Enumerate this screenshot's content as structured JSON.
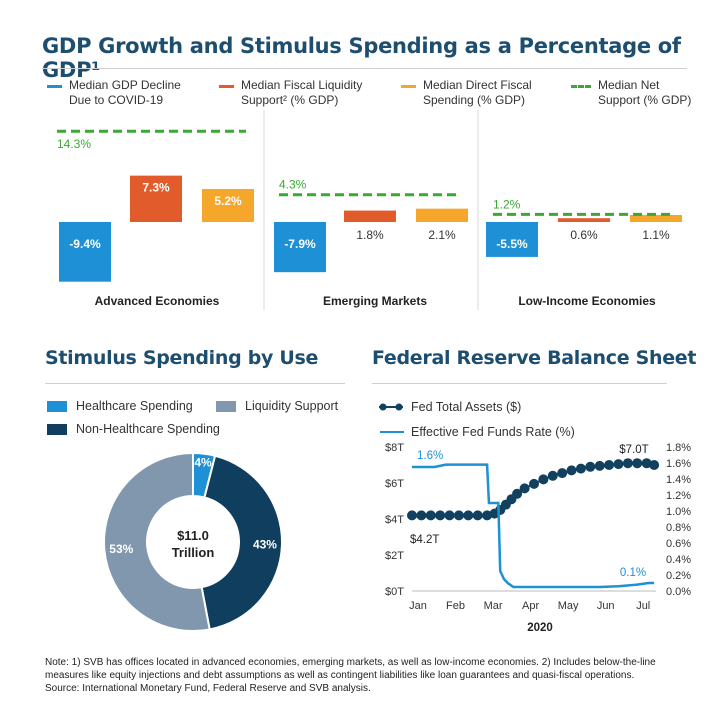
{
  "title_main": "GDP Growth and Stimulus Spending as a Percentage of GDP¹",
  "title_donut": "Stimulus Spending by Use",
  "title_fed": "Federal Reserve Balance Sheet",
  "colors": {
    "title": "#1d4e70",
    "gdp": "#1e90d6",
    "liquidity": "#e15c2a",
    "direct": "#f5a72b",
    "net": "#3aa832",
    "healthcare": "#1e90d6",
    "liquidity_use": "#8197ae",
    "nonhealth": "#0f3e5e",
    "fed_assets": "#12405f",
    "ffr": "#1e90d6"
  },
  "chart_data": [
    {
      "type": "bar",
      "title": "GDP Growth and Stimulus Spending as a Percentage of GDP¹",
      "categories": [
        "Advanced Economies",
        "Emerging Markets",
        "Low-Income Economies"
      ],
      "series": [
        {
          "name": "Median GDP Decline Due to COVID-19",
          "values": [
            -9.4,
            -7.9,
            -5.5
          ],
          "labels": [
            "-9.4%",
            "-7.9%",
            "-5.5%"
          ]
        },
        {
          "name": "Median Fiscal Liquidity Support² (% GDP)",
          "values": [
            7.3,
            1.8,
            0.6
          ],
          "labels": [
            "7.3%",
            "1.8%",
            "0.6%"
          ]
        },
        {
          "name": "Median Direct Fiscal Spending (% GDP)",
          "values": [
            5.2,
            2.1,
            1.1
          ],
          "labels": [
            "5.2%",
            "2.1%",
            "1.1%"
          ]
        },
        {
          "name": "Median Net Support (% GDP)",
          "values": [
            14.3,
            4.3,
            1.2
          ],
          "labels": [
            "14.3%",
            "4.3%",
            "1.2%"
          ],
          "style": "dashed"
        }
      ],
      "legend": [
        {
          "line1": "Median GDP Decline",
          "line2": "Due to COVID-19"
        },
        {
          "line1": "Median Fiscal Liquidity",
          "line2": "Support² (% GDP)"
        },
        {
          "line1": "Median Direct Fiscal",
          "line2": "Spending (% GDP)"
        },
        {
          "line1": "Median Net",
          "line2": "Support (% GDP)"
        }
      ]
    },
    {
      "type": "pie",
      "title": "Stimulus Spending by Use",
      "center_label": [
        "$11.0",
        "Trillion"
      ],
      "slices": [
        {
          "name": "Healthcare Spending",
          "value": 4,
          "label": "4%"
        },
        {
          "name": "Non-Healthcare Spending",
          "value": 43,
          "label": "43%"
        },
        {
          "name": "Liquidity Support",
          "value": 53,
          "label": "53%"
        }
      ],
      "legend": [
        "Healthcare Spending",
        "Liquidity Support",
        "Non-Healthcare Spending"
      ]
    },
    {
      "type": "line",
      "title": "Federal Reserve Balance Sheet",
      "xlabel": "2020",
      "x_ticks": [
        "Jan",
        "Feb",
        "Mar",
        "Apr",
        "May",
        "Jun",
        "Jul"
      ],
      "y_left_ticks": [
        "$8T",
        "$6T",
        "$4T",
        "$2T",
        "$0T"
      ],
      "y_left_range": [
        0,
        8
      ],
      "y_right_ticks": [
        "1.8%",
        "1.6%",
        "1.4%",
        "1.2%",
        "1.0%",
        "0.8%",
        "0.6%",
        "0.4%",
        "0.2%",
        "0.0%"
      ],
      "y_right_range": [
        0,
        1.8
      ],
      "annotations": {
        "assets_start": "$4.2T",
        "assets_end": "$7.0T",
        "ffr_start": "1.6%",
        "ffr_end": "0.1%"
      },
      "series": [
        {
          "name": "Fed Total Assets ($)",
          "axis": "left",
          "marker": "dot",
          "x": [
            0.0,
            0.25,
            0.5,
            0.75,
            1.0,
            1.25,
            1.5,
            1.75,
            2.0,
            2.2,
            2.35,
            2.5,
            2.65,
            2.8,
            3.0,
            3.25,
            3.5,
            3.75,
            4.0,
            4.25,
            4.5,
            4.75,
            5.0,
            5.25,
            5.5,
            5.75,
            6.0,
            6.25,
            6.45
          ],
          "y": [
            4.2,
            4.2,
            4.2,
            4.2,
            4.2,
            4.2,
            4.2,
            4.2,
            4.2,
            4.3,
            4.5,
            4.8,
            5.1,
            5.4,
            5.7,
            5.95,
            6.2,
            6.4,
            6.55,
            6.7,
            6.8,
            6.9,
            6.95,
            7.0,
            7.05,
            7.1,
            7.1,
            7.1,
            7.0
          ]
        },
        {
          "name": "Effective Fed Funds Rate (%)",
          "axis": "right",
          "x": [
            0.0,
            0.3,
            0.6,
            0.9,
            1.2,
            1.5,
            1.8,
            2.0,
            2.05,
            2.3,
            2.35,
            2.45,
            2.55,
            2.7,
            3.0,
            3.5,
            4.0,
            4.5,
            5.0,
            5.5,
            6.0,
            6.3,
            6.45
          ],
          "y": [
            1.55,
            1.55,
            1.55,
            1.58,
            1.58,
            1.58,
            1.58,
            1.58,
            1.1,
            1.1,
            0.25,
            0.15,
            0.1,
            0.05,
            0.05,
            0.05,
            0.05,
            0.05,
            0.05,
            0.06,
            0.08,
            0.1,
            0.1
          ]
        }
      ]
    }
  ],
  "note_lines": [
    "Note: 1) SVB has offices located in advanced economies, emerging markets, as well as low-income economies. 2) Includes below-the-line",
    "measures like equity injections and debt assumptions as well as contingent liabilities like loan guarantees and quasi-fiscal operations.",
    "Source: International Monetary Fund, Federal Reserve and SVB analysis."
  ]
}
